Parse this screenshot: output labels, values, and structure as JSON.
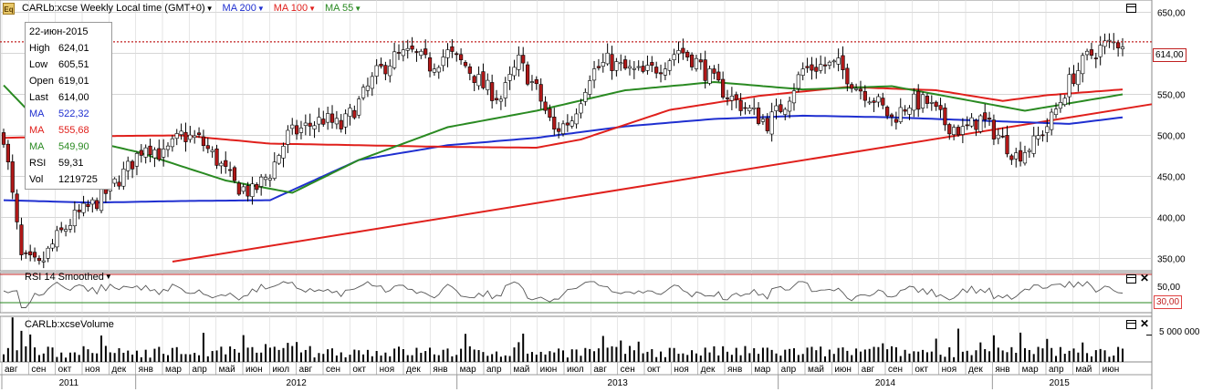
{
  "header": {
    "symbol_label": "CARLb:xcse Weekly Local time (GMT+0)",
    "ma200_label": "MA 200",
    "ma100_label": "MA 100",
    "ma55_label": "MA 55"
  },
  "infobox": {
    "date": "22-июн-2015",
    "rows": [
      {
        "label": "High",
        "value": "624,01"
      },
      {
        "label": "Low",
        "value": "605,51"
      },
      {
        "label": "Open",
        "value": "619,01"
      },
      {
        "label": "Last",
        "value": "614,00"
      },
      {
        "label": "MA",
        "value": "522,32"
      },
      {
        "label": "MA",
        "value": "555,68"
      },
      {
        "label": "MA",
        "value": "549,90"
      },
      {
        "label": "RSI",
        "value": "59,31"
      },
      {
        "label": "Vol",
        "value": "1219725"
      }
    ]
  },
  "rsi_panel": {
    "title": "RSI 14 Smoothed",
    "level_label": "30,00",
    "tick_label": "50,00"
  },
  "volume_panel": {
    "title": "CARLb:xcseVolume",
    "tick_label": "5 000 000"
  },
  "price_tag": "614,00",
  "colors": {
    "ma200": "#1f2fd0",
    "ma100": "#e0201c",
    "ma55": "#2a8a22",
    "trend": "#e0201c",
    "candle_up": "#ffffff",
    "candle_down": "#b01818",
    "grid": "#c8c8c8"
  },
  "chart_data": [
    {
      "type": "candlestick",
      "title": "",
      "interval": "Weekly",
      "ylim": [
        335,
        665
      ],
      "y_ticks": [
        "650,00",
        "600,00",
        "550,00",
        "500,00",
        "450,00",
        "400,00",
        "350,00"
      ],
      "y_tick_values": [
        650,
        600,
        550,
        500,
        450,
        400,
        350
      ],
      "x_month_labels": [
        "авг",
        "сен",
        "окт",
        "ноя",
        "дек",
        "янв",
        "мар",
        "апр",
        "май",
        "июн",
        "июл",
        "авг",
        "сен",
        "окт",
        "ноя",
        "дек",
        "янв",
        "мар",
        "апр",
        "май",
        "июн",
        "июл",
        "авг",
        "сен",
        "окт",
        "ноя",
        "дек",
        "янв",
        "мар",
        "апр",
        "май",
        "июн",
        "авг",
        "сен",
        "окт",
        "ноя",
        "дек",
        "янв",
        "мар",
        "апр",
        "май",
        "июн"
      ],
      "x_year_labels": [
        "2011",
        "2012",
        "2013",
        "2014",
        "2015"
      ],
      "current_price_line": 614.0,
      "series": [
        {
          "name": "MA 200",
          "anchors": [
            [
              0,
              421
            ],
            [
              20,
              418
            ],
            [
              40,
              420
            ],
            [
              60,
              421
            ],
            [
              80,
              470
            ],
            [
              100,
              488
            ],
            [
              120,
              497
            ],
            [
              140,
              511
            ],
            [
              160,
              520
            ],
            [
              180,
              524
            ],
            [
              200,
              522
            ],
            [
              220,
              518
            ],
            [
              240,
              514
            ],
            [
              252,
              522
            ]
          ]
        },
        {
          "name": "MA 100",
          "anchors": [
            [
              0,
              497
            ],
            [
              20,
              499
            ],
            [
              40,
              500
            ],
            [
              60,
              490
            ],
            [
              80,
              488
            ],
            [
              100,
              486
            ],
            [
              120,
              485
            ],
            [
              130,
              495
            ],
            [
              150,
              531
            ],
            [
              170,
              548
            ],
            [
              190,
              559
            ],
            [
              210,
              555
            ],
            [
              225,
              542
            ],
            [
              235,
              549
            ],
            [
              252,
              556
            ]
          ]
        },
        {
          "name": "MA 55",
          "anchors": [
            [
              0,
              561
            ],
            [
              10,
              505
            ],
            [
              30,
              480
            ],
            [
              50,
              445
            ],
            [
              65,
              430
            ],
            [
              80,
              470
            ],
            [
              100,
              510
            ],
            [
              120,
              530
            ],
            [
              140,
              555
            ],
            [
              160,
              565
            ],
            [
              180,
              556
            ],
            [
              200,
              560
            ],
            [
              215,
              545
            ],
            [
              230,
              530
            ],
            [
              252,
              550
            ]
          ]
        },
        {
          "name": "trendline",
          "anchors": [
            [
              0,
              320
            ],
            [
              250,
              538
            ]
          ]
        }
      ],
      "candles_anchors": [
        [
          0,
          500
        ],
        [
          4,
          350
        ],
        [
          8,
          340
        ],
        [
          12,
          375
        ],
        [
          16,
          400
        ],
        [
          20,
          415
        ],
        [
          24,
          435
        ],
        [
          28,
          460
        ],
        [
          32,
          490
        ],
        [
          36,
          475
        ],
        [
          40,
          500
        ],
        [
          44,
          495
        ],
        [
          48,
          470
        ],
        [
          52,
          440
        ],
        [
          56,
          430
        ],
        [
          60,
          455
        ],
        [
          64,
          500
        ],
        [
          68,
          510
        ],
        [
          72,
          520
        ],
        [
          76,
          510
        ],
        [
          80,
          540
        ],
        [
          84,
          575
        ],
        [
          88,
          595
        ],
        [
          92,
          600
        ],
        [
          96,
          585
        ],
        [
          100,
          600
        ],
        [
          104,
          585
        ],
        [
          108,
          560
        ],
        [
          112,
          545
        ],
        [
          116,
          590
        ],
        [
          120,
          555
        ],
        [
          124,
          505
        ],
        [
          128,
          520
        ],
        [
          132,
          575
        ],
        [
          136,
          590
        ],
        [
          140,
          580
        ],
        [
          144,
          575
        ],
        [
          148,
          585
        ],
        [
          152,
          605
        ],
        [
          156,
          590
        ],
        [
          160,
          565
        ],
        [
          164,
          545
        ],
        [
          168,
          530
        ],
        [
          172,
          515
        ],
        [
          176,
          540
        ],
        [
          180,
          580
        ],
        [
          184,
          585
        ],
        [
          188,
          585
        ],
        [
          192,
          560
        ],
        [
          196,
          545
        ],
        [
          200,
          520
        ],
        [
          204,
          540
        ],
        [
          208,
          540
        ],
        [
          212,
          515
        ],
        [
          216,
          505
        ],
        [
          220,
          520
        ],
        [
          224,
          500
        ],
        [
          228,
          475
        ],
        [
          232,
          490
        ],
        [
          236,
          520
        ],
        [
          240,
          565
        ],
        [
          244,
          595
        ],
        [
          248,
          610
        ],
        [
          252,
          614
        ]
      ]
    },
    {
      "type": "line",
      "title": "RSI 14 Smoothed",
      "ylim": [
        10,
        90
      ],
      "levels": [
        30,
        50
      ],
      "level_labels": [
        "30,00",
        "50,00"
      ]
    },
    {
      "type": "bar",
      "title": "CARLb:xcseVolume",
      "ylim": [
        0,
        8500000
      ],
      "y_tick_values": [
        5000000
      ],
      "y_ticks": [
        "5 000 000"
      ]
    }
  ]
}
